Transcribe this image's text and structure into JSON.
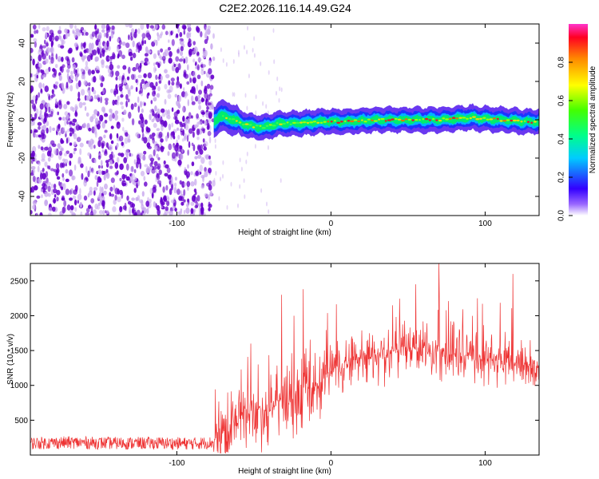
{
  "title": "C2E2.2026.116.14.49.G24",
  "chart_data": [
    {
      "type": "heatmap",
      "xlabel": "Height of straight line (km)",
      "ylabel": "Frequency (Hz)",
      "xlim": [
        -195,
        135
      ],
      "ylim": [
        -50,
        50
      ],
      "xticks": [
        -100,
        0,
        100
      ],
      "yticks": [
        -40,
        -20,
        0,
        20,
        40
      ],
      "colorbar": {
        "label": "Normalized spectral amplitude",
        "range": [
          0,
          1
        ],
        "ticks": [
          0.0,
          0.2,
          0.4,
          0.6,
          0.8
        ]
      },
      "noise_region_x": [
        -195,
        -76
      ],
      "signal_ridge": [
        {
          "x": -76,
          "y": -1
        },
        {
          "x": -72,
          "y": 2
        },
        {
          "x": -66,
          "y": 1
        },
        {
          "x": -60,
          "y": -1
        },
        {
          "x": -54,
          "y": -3
        },
        {
          "x": -44,
          "y": -4
        },
        {
          "x": -34,
          "y": -2
        },
        {
          "x": -20,
          "y": -2
        },
        {
          "x": -8,
          "y": -1
        },
        {
          "x": 10,
          "y": -1
        },
        {
          "x": 30,
          "y": 0
        },
        {
          "x": 50,
          "y": 0
        },
        {
          "x": 70,
          "y": 0
        },
        {
          "x": 90,
          "y": 1
        },
        {
          "x": 110,
          "y": 0
        },
        {
          "x": 125,
          "y": -1
        },
        {
          "x": 135,
          "y": -1
        }
      ]
    },
    {
      "type": "line",
      "xlabel": "Height of straight line (km)",
      "ylabel": "SNR (10 * v/v)",
      "xlim": [
        -195,
        135
      ],
      "ylim": [
        0,
        2750
      ],
      "xticks": [
        -100,
        0,
        100
      ],
      "yticks": [
        500,
        1000,
        1500,
        2000,
        2500
      ],
      "color": "#ee3333",
      "series": [
        {
          "name": "SNR",
          "x": [
            -195,
            -170,
            -140,
            -110,
            -90,
            -76,
            -70,
            -64,
            -58,
            -52,
            -46,
            -40,
            -34,
            -28,
            -22,
            -16,
            -10,
            -4,
            0,
            6,
            12,
            18,
            24,
            30,
            36,
            42,
            48,
            54,
            60,
            66,
            72,
            78,
            84,
            90,
            96,
            102,
            108,
            114,
            120,
            126,
            132,
            135
          ],
          "values": [
            170,
            180,
            170,
            170,
            165,
            180,
            260,
            420,
            520,
            600,
            650,
            620,
            780,
            800,
            780,
            900,
            950,
            1100,
            1250,
            1300,
            1350,
            1400,
            1430,
            1450,
            1480,
            1500,
            1520,
            1520,
            1500,
            1480,
            1470,
            1450,
            1420,
            1400,
            1380,
            1360,
            1350,
            1330,
            1320,
            1300,
            1280,
            1270
          ]
        }
      ],
      "peaks": [
        {
          "x": -52,
          "y": 1600
        },
        {
          "x": -32,
          "y": 2300
        },
        {
          "x": -24,
          "y": 2000
        },
        {
          "x": -18,
          "y": 2380
        },
        {
          "x": 40,
          "y": 2150
        },
        {
          "x": 55,
          "y": 2450
        },
        {
          "x": 70,
          "y": 2760
        },
        {
          "x": 95,
          "y": 2250
        },
        {
          "x": 118,
          "y": 2600
        }
      ]
    }
  ],
  "colors": {
    "noise_dark": "#6600cc",
    "noise_light": "#c8a8ee",
    "snr_line": "#ee3333",
    "axes": "#000000"
  }
}
